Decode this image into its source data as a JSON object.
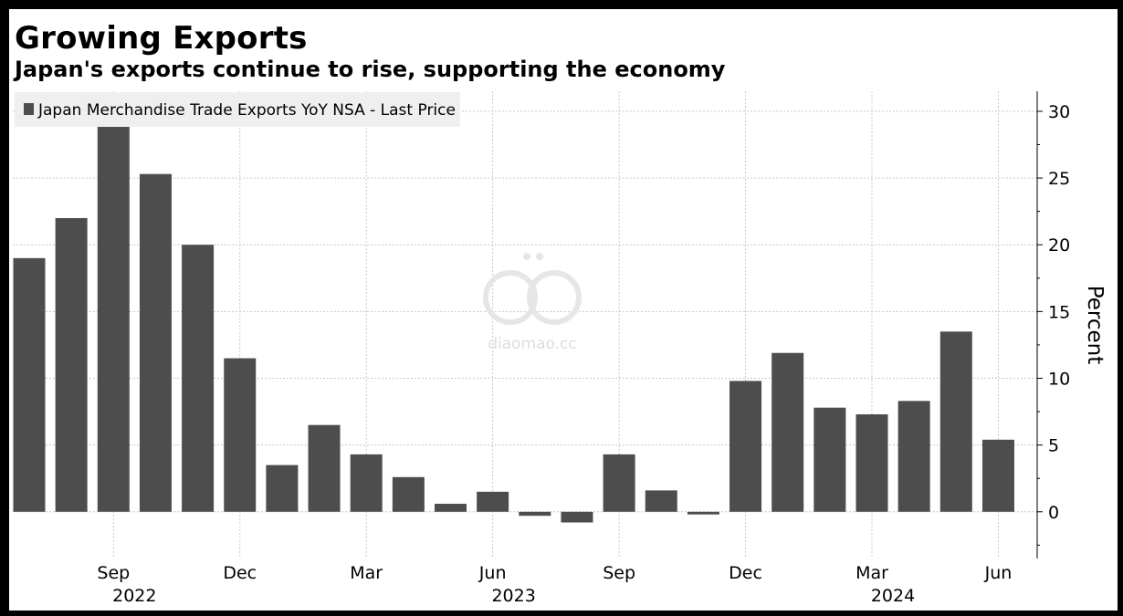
{
  "header": {
    "title": "Growing Exports",
    "subtitle": "Japan's exports continue to rise, supporting the economy"
  },
  "watermark": {
    "text": "diaomao.cc"
  },
  "chart_data": {
    "type": "bar",
    "title": "Growing Exports",
    "subtitle": "Japan's exports continue to rise, supporting the economy",
    "xlabel": "",
    "ylabel": "Percent",
    "ylim": [
      -3.5,
      31.5
    ],
    "yticks": [
      0,
      5,
      10,
      15,
      20,
      25,
      30
    ],
    "y_axis_side": "right",
    "grid": true,
    "legend_position": "top-left",
    "bar_color": "#4d4d4d",
    "series": [
      {
        "name": "Japan Merchandise Trade Exports YoY NSA - Last Price",
        "categories": [
          "2022-07",
          "2022-08",
          "2022-09",
          "2022-10",
          "2022-11",
          "2022-12",
          "2023-01",
          "2023-02",
          "2023-03",
          "2023-04",
          "2023-05",
          "2023-06",
          "2023-07",
          "2023-08",
          "2023-09",
          "2023-10",
          "2023-11",
          "2023-12",
          "2024-01",
          "2024-02",
          "2024-03",
          "2024-04",
          "2024-05",
          "2024-06"
        ],
        "values": [
          19.0,
          22.0,
          28.9,
          25.3,
          20.0,
          11.5,
          3.5,
          6.5,
          4.3,
          2.6,
          0.6,
          1.5,
          -0.3,
          -0.8,
          4.3,
          1.6,
          -0.2,
          9.8,
          11.9,
          7.8,
          7.3,
          8.3,
          13.5,
          5.4
        ]
      }
    ],
    "x_tick_labels": [
      {
        "label": "Sep",
        "category": "2022-09"
      },
      {
        "label": "Dec",
        "category": "2022-12"
      },
      {
        "label": "Mar",
        "category": "2023-03"
      },
      {
        "label": "Jun",
        "category": "2023-06"
      },
      {
        "label": "Sep",
        "category": "2023-09"
      },
      {
        "label": "Dec",
        "category": "2023-12"
      },
      {
        "label": "Mar",
        "category": "2024-03"
      },
      {
        "label": "Jun",
        "category": "2024-06"
      }
    ],
    "x_year_labels": [
      {
        "label": "2022",
        "category": "2022-09"
      },
      {
        "label": "2023",
        "category": "2023-06"
      },
      {
        "label": "2024",
        "category": "2024-03"
      }
    ]
  }
}
